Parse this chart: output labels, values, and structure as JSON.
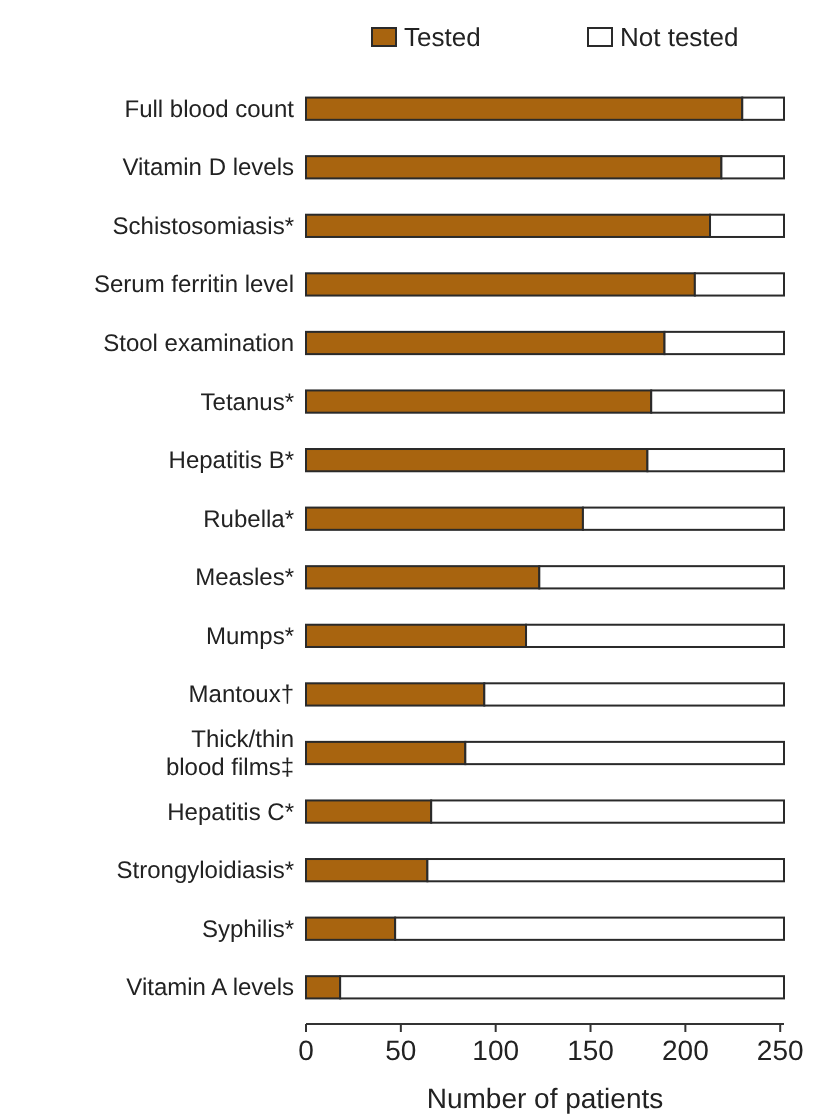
{
  "chart_data": {
    "type": "bar",
    "orientation": "horizontal",
    "stacked": true,
    "xlabel": "Number of patients",
    "categories": [
      "Full blood count",
      "Vitamin D levels",
      "Schistosomiasis*",
      "Serum ferritin level",
      "Stool examination",
      "Tetanus*",
      "Hepatitis B*",
      "Rubella*",
      "Measles*",
      "Mumps*",
      "Mantoux†",
      "Thick/thin blood films‡",
      "Hepatitis C*",
      "Strongyloidiasis*",
      "Syphilis*",
      "Vitamin A levels"
    ],
    "series": [
      {
        "name": "Tested",
        "color": "#a8640f",
        "values": [
          230,
          219,
          213,
          205,
          189,
          182,
          180,
          146,
          123,
          116,
          94,
          84,
          66,
          64,
          47,
          18
        ]
      },
      {
        "name": "Not tested",
        "color": "#ffffff",
        "values": [
          22,
          33,
          39,
          47,
          63,
          70,
          72,
          106,
          129,
          136,
          158,
          168,
          186,
          188,
          205,
          234
        ]
      }
    ],
    "xlim": [
      0,
      252
    ],
    "xticks": [
      0,
      50,
      100,
      150,
      200,
      250
    ],
    "grid": false,
    "legend": "top right"
  }
}
